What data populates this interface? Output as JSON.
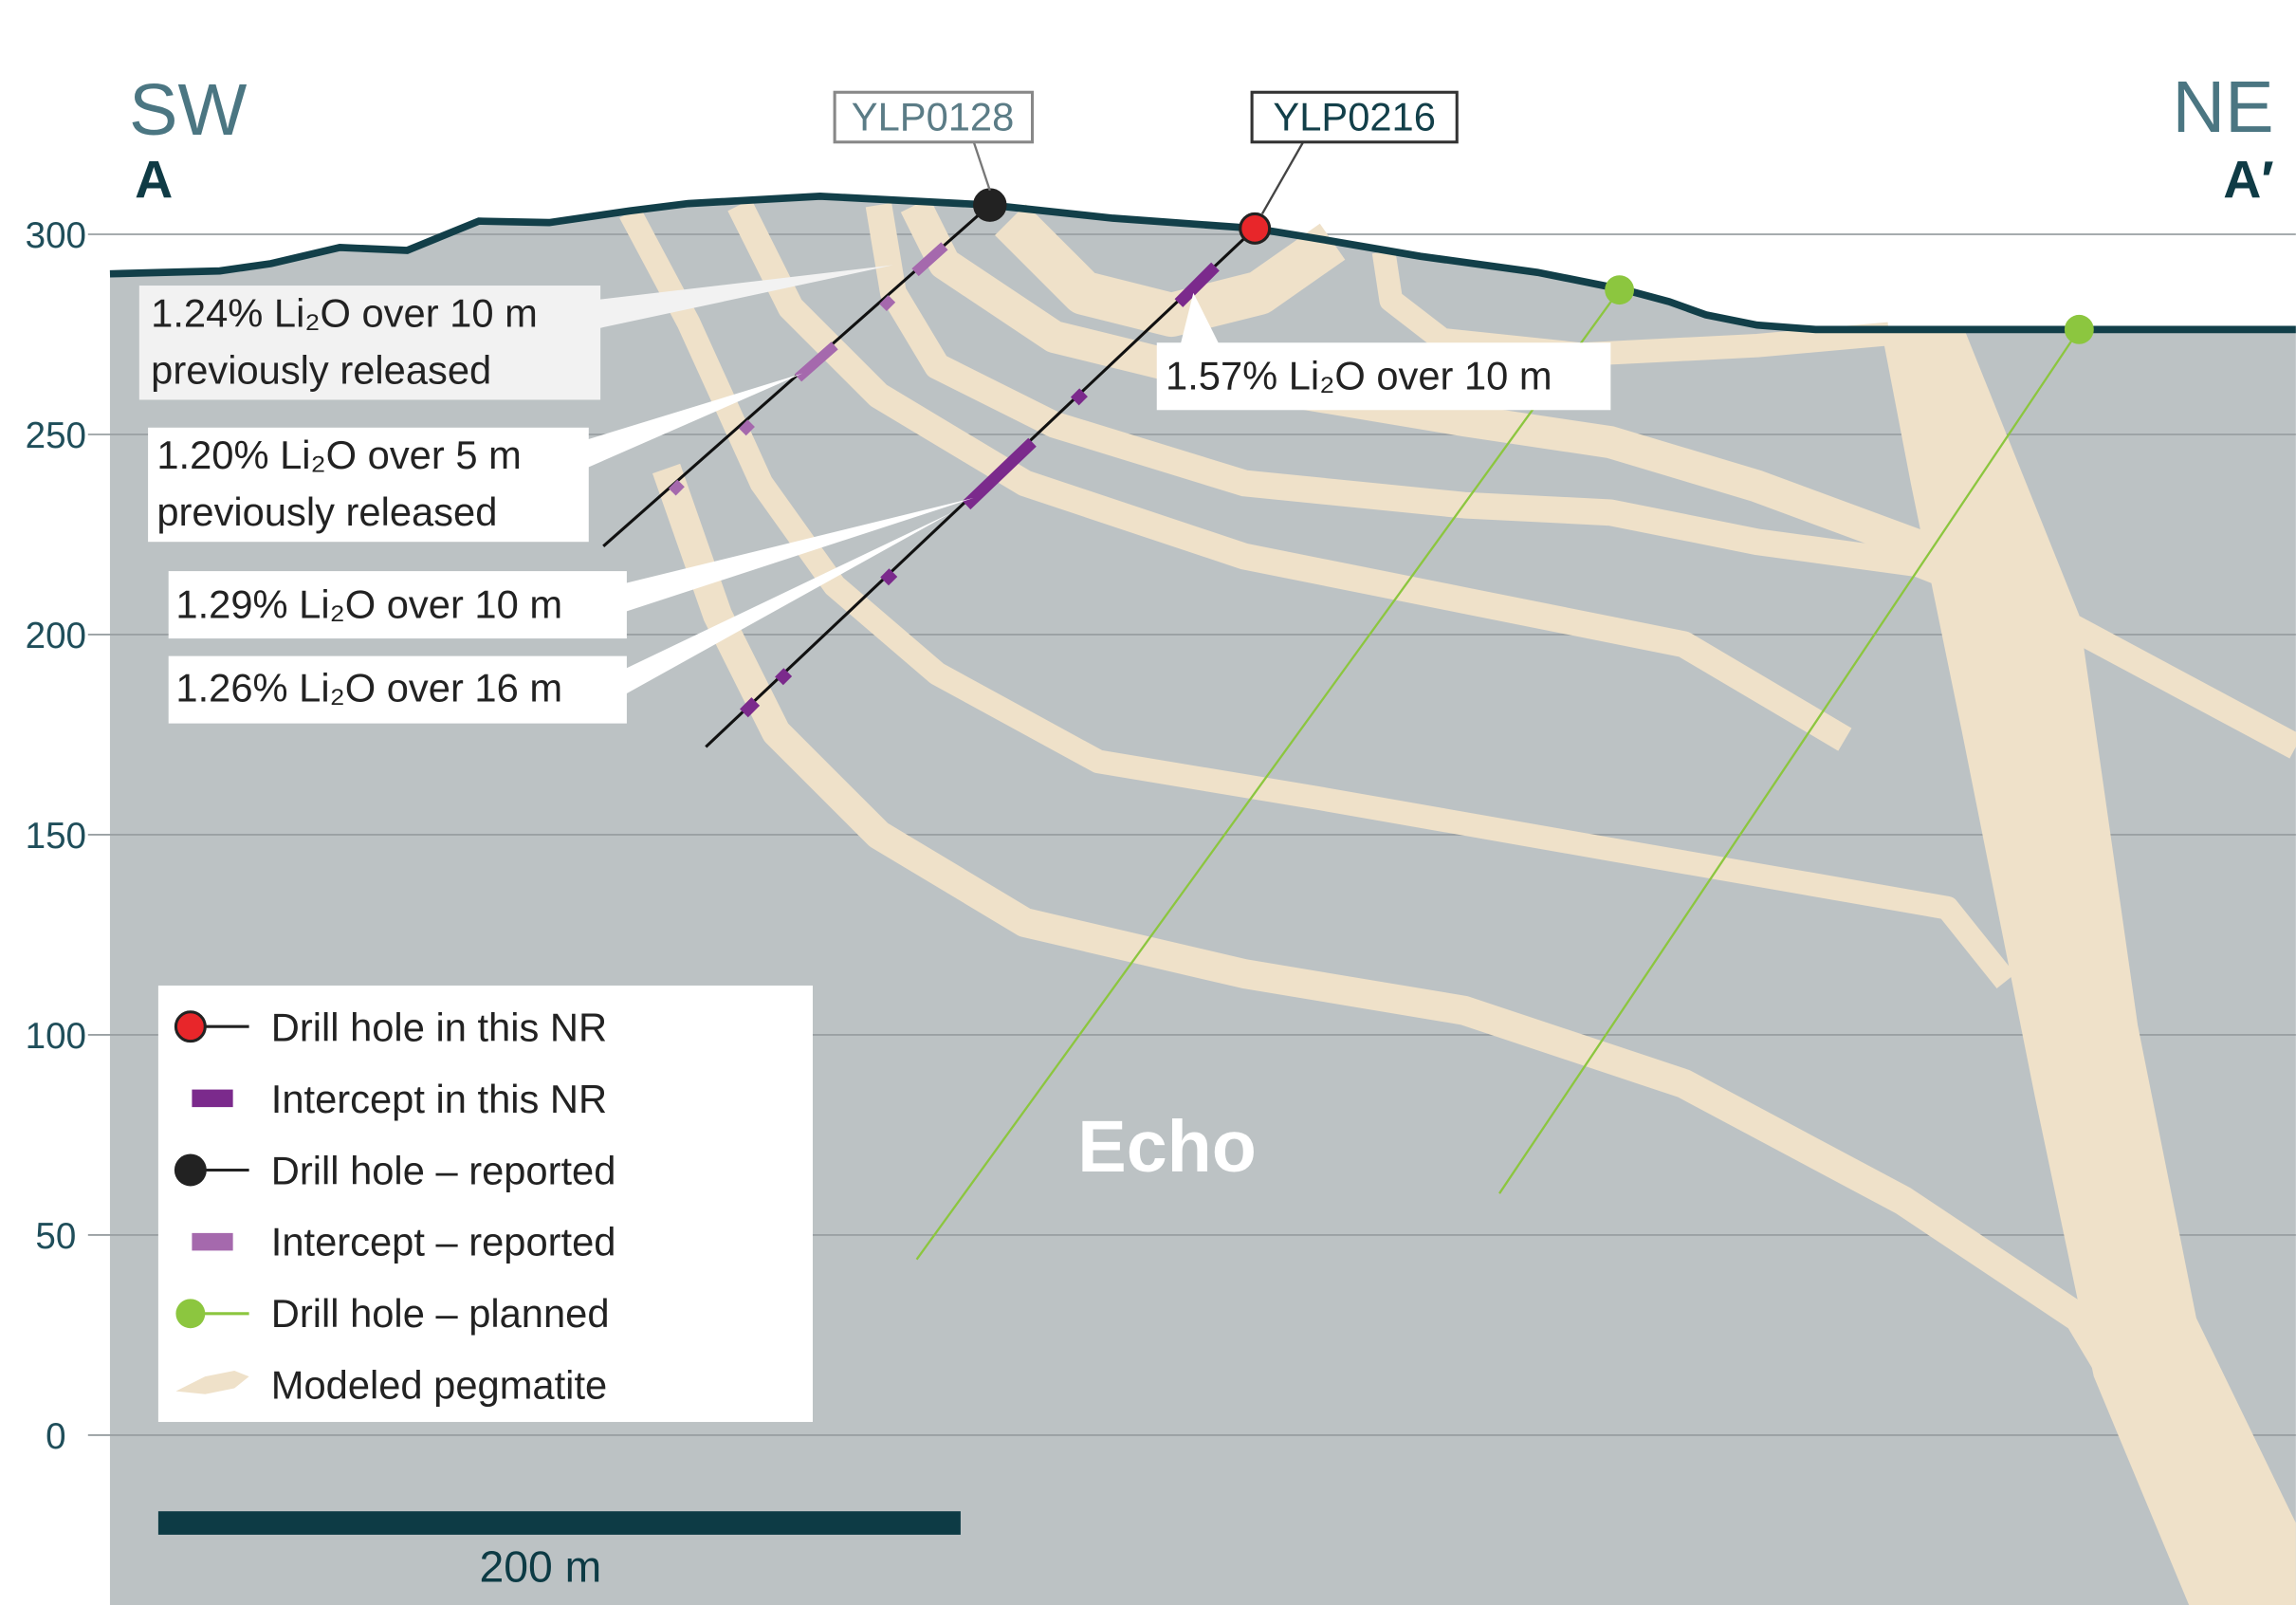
{
  "orientation": {
    "left": {
      "direction": "SW",
      "section": "A"
    },
    "right": {
      "direction": "NE",
      "section": "A′"
    }
  },
  "elevation_axis": {
    "ticks": [
      300,
      250,
      200,
      150,
      100,
      50,
      0
    ]
  },
  "drill_holes": [
    {
      "label": "YLP0128"
    },
    {
      "label": "YLP0216"
    }
  ],
  "intercepts": [
    {
      "text": "1.24% Li₂O over 10 m",
      "note": "previously released"
    },
    {
      "text": "1.20% Li₂O over 5 m",
      "note": "previously released"
    },
    {
      "text": "1.29% Li₂O over 10 m"
    },
    {
      "text": "1.26% Li₂O over 16 m"
    },
    {
      "text": "1.57% Li₂O over 10 m"
    }
  ],
  "legend": [
    "Drill hole in this NR",
    "Intercept in this NR",
    "Drill hole – reported",
    "Intercept – reported",
    "Drill hole – planned",
    "Modeled pegmatite"
  ],
  "zone_label": "Echo",
  "scale_bar": "200 m"
}
